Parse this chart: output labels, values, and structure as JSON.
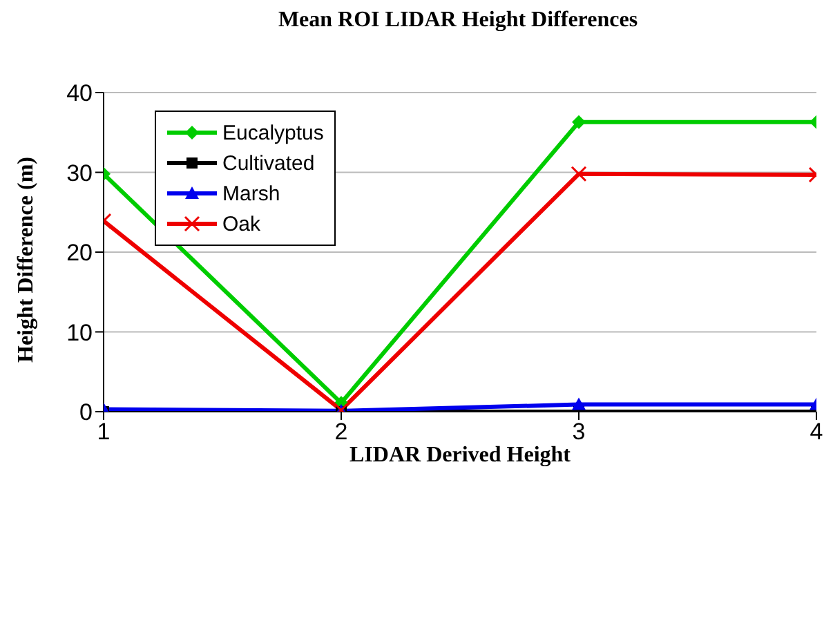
{
  "chart_data": {
    "type": "line",
    "title": "Mean ROI LIDAR Height Differences",
    "xlabel": "LIDAR Derived Height",
    "ylabel": "Height Difference (m)",
    "x": [
      1,
      2,
      3,
      4
    ],
    "xlim": [
      1,
      4
    ],
    "xticks": [
      1,
      2,
      3,
      4
    ],
    "ylim": [
      0,
      40
    ],
    "yticks": [
      0,
      10,
      20,
      30,
      40
    ],
    "grid": "y",
    "legend": "top left",
    "series": [
      {
        "name": "Eucalyptus",
        "color": "#00cc00",
        "marker": "diamond",
        "values": [
          29.8,
          1.1,
          36.3,
          36.3
        ]
      },
      {
        "name": "Cultivated",
        "color": "#000000",
        "marker": "square",
        "values": [
          0,
          0,
          0,
          0
        ]
      },
      {
        "name": "Marsh",
        "color": "#0000ee",
        "marker": "triangle",
        "values": [
          0.3,
          0.1,
          0.9,
          0.9
        ]
      },
      {
        "name": "Oak",
        "color": "#ee0000",
        "marker": "cross",
        "values": [
          23.9,
          0.2,
          29.8,
          29.7
        ]
      }
    ]
  }
}
